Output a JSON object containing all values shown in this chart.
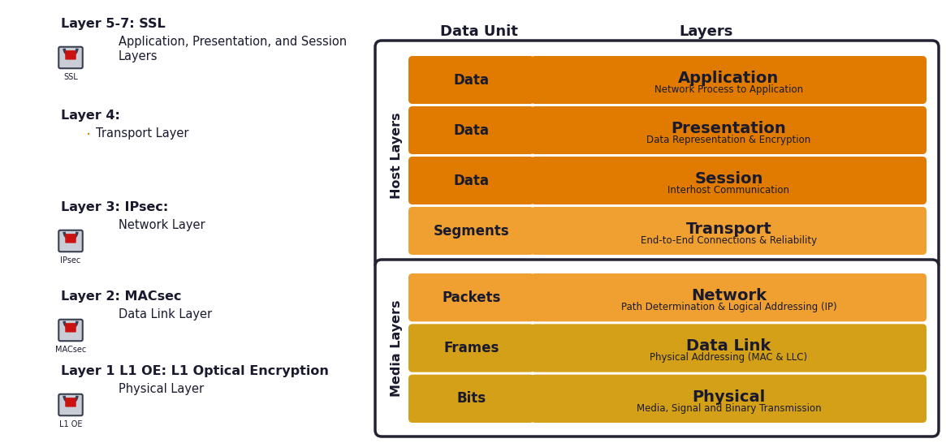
{
  "bg_color": "#ffffff",
  "text_dark": "#1a1a2e",
  "left_items": [
    {
      "title_plain": "Layer 5-7: ",
      "title_bold_part": "SSL",
      "has_lock": true,
      "lock_label": "SSL",
      "bullet": false,
      "desc_lines": [
        "Application, Presentation, and Session",
        "Layers"
      ]
    },
    {
      "title_plain": "Layer 4:",
      "title_bold_part": "",
      "has_lock": false,
      "lock_label": "",
      "bullet": true,
      "desc_lines": [
        "Transport Layer"
      ]
    },
    {
      "title_plain": "Layer 3: ",
      "title_bold_part": "IPsec:",
      "has_lock": true,
      "lock_label": "IPsec",
      "bullet": false,
      "desc_lines": [
        "Network Layer"
      ]
    },
    {
      "title_plain": "Layer 2: ",
      "title_bold_part": "MACsec",
      "has_lock": true,
      "lock_label": "MACsec",
      "bullet": false,
      "desc_lines": [
        "Data Link Layer"
      ]
    },
    {
      "title_plain": "Layer 1 L1 OE: L1 Optical Encryption",
      "title_bold_part": "",
      "has_lock": true,
      "lock_label": "L1 OE",
      "bullet": false,
      "desc_lines": [
        "Physical Layer"
      ]
    }
  ],
  "host_rows": [
    {
      "data_unit": "Data",
      "layer_name": "Application",
      "layer_desc": "Network Process to Application",
      "color": "#e07b00"
    },
    {
      "data_unit": "Data",
      "layer_name": "Presentation",
      "layer_desc": "Data Representation & Encryption",
      "color": "#e07b00"
    },
    {
      "data_unit": "Data",
      "layer_name": "Session",
      "layer_desc": "Interhost Communication",
      "color": "#e07b00"
    },
    {
      "data_unit": "Segments",
      "layer_name": "Transport",
      "layer_desc": "End-to-End Connections & Reliability",
      "color": "#f0a030"
    }
  ],
  "media_rows": [
    {
      "data_unit": "Packets",
      "layer_name": "Network",
      "layer_desc": "Path Determination & Logical Addressing (IP)",
      "color": "#f0a030"
    },
    {
      "data_unit": "Frames",
      "layer_name": "Data Link",
      "layer_desc": "Physical Addressing (MAC & LLC)",
      "color": "#d4a017"
    },
    {
      "data_unit": "Bits",
      "layer_name": "Physical",
      "layer_desc": "Media, Signal and Binary Transmission",
      "color": "#d4a017"
    }
  ],
  "col_header_du": "Data Unit",
  "col_header_la": "Layers",
  "host_label": "Host Layers",
  "media_label": "Media Layers"
}
